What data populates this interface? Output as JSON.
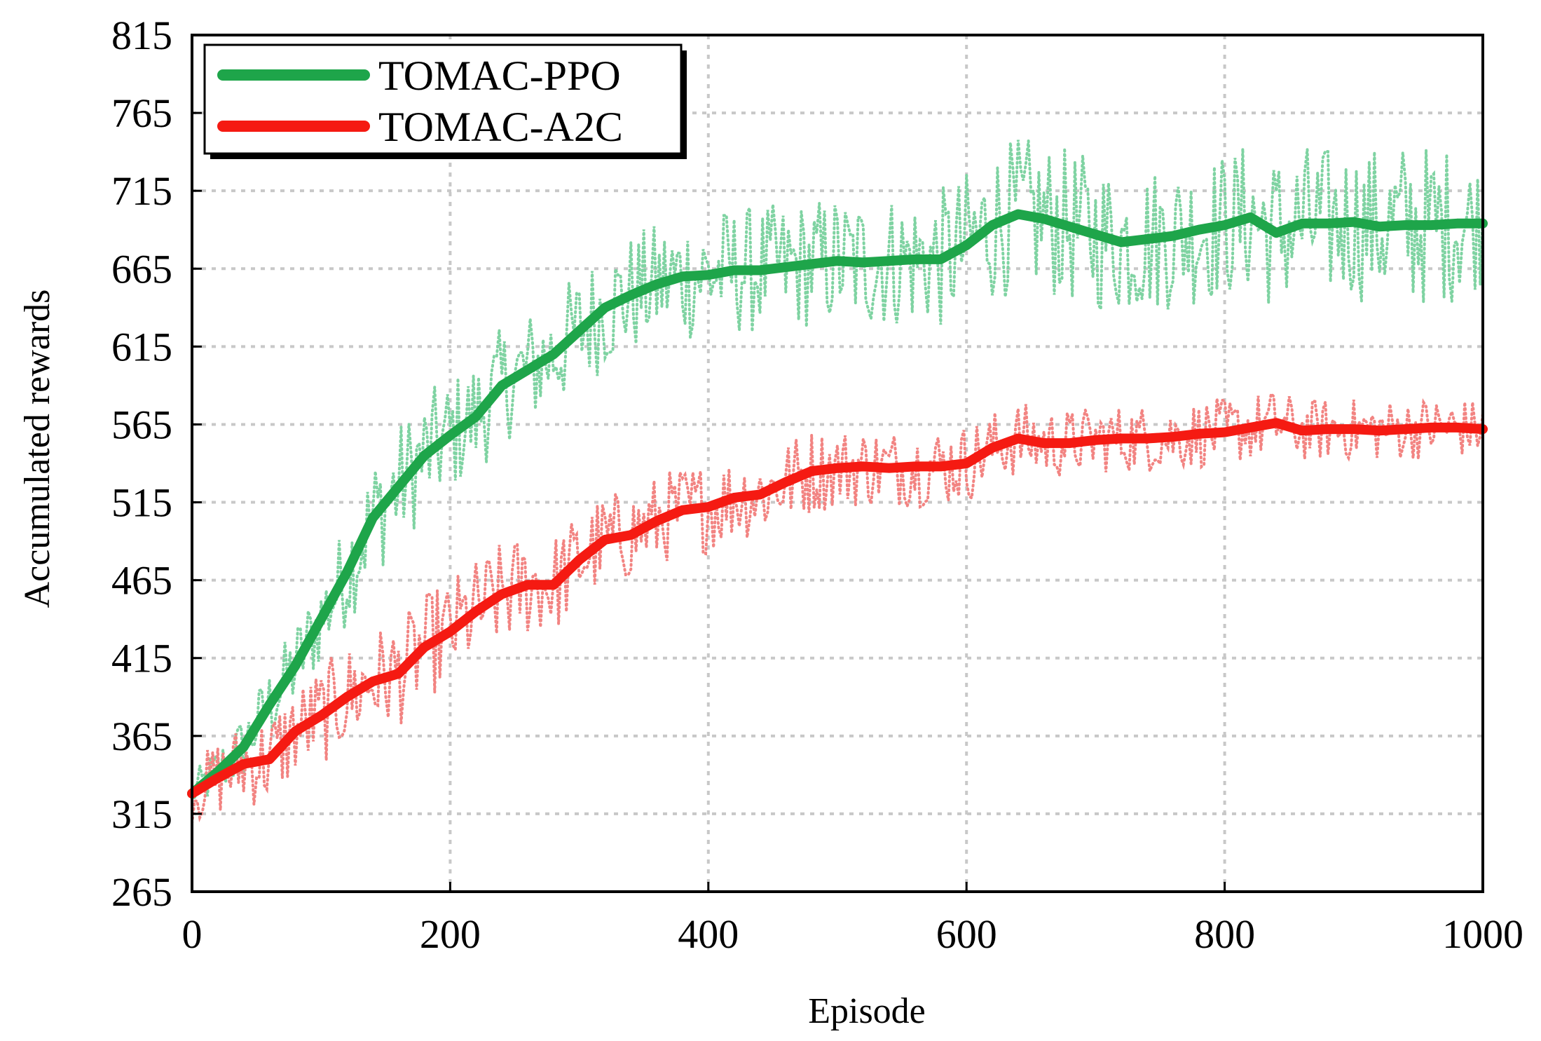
{
  "chart_data": {
    "type": "line",
    "title": "",
    "xlabel": "Episode",
    "ylabel": "Accumulated rewards",
    "xlim": [
      0,
      1000
    ],
    "ylim": [
      265,
      815
    ],
    "x_ticks": [
      0,
      200,
      400,
      600,
      800,
      1000
    ],
    "x_tick_labels": [
      "0",
      "200",
      "400",
      "600",
      "800",
      "1000"
    ],
    "y_ticks": [
      265,
      315,
      365,
      415,
      465,
      515,
      565,
      615,
      665,
      715,
      765,
      815
    ],
    "y_tick_labels": [
      "265",
      "315",
      "365",
      "415",
      "465",
      "515",
      "565",
      "615",
      "665",
      "715",
      "765",
      "815"
    ],
    "grid": true,
    "legend_position": "top-left",
    "series": [
      {
        "name": "TOMAC-PPO",
        "color": "#1ea54a",
        "raw_color": "#7fd3a2",
        "x": [
          0,
          20,
          40,
          60,
          80,
          100,
          120,
          140,
          160,
          180,
          200,
          220,
          240,
          260,
          280,
          300,
          320,
          340,
          360,
          380,
          400,
          420,
          440,
          460,
          480,
          500,
          520,
          540,
          560,
          580,
          600,
          620,
          640,
          660,
          680,
          700,
          720,
          740,
          760,
          780,
          800,
          820,
          840,
          860,
          880,
          900,
          920,
          940,
          960,
          980,
          1000
        ],
        "values": [
          328,
          342,
          358,
          385,
          410,
          440,
          470,
          505,
          525,
          545,
          558,
          570,
          590,
          600,
          610,
          625,
          640,
          648,
          655,
          660,
          661,
          664,
          664,
          666,
          668,
          670,
          669,
          670,
          671,
          671,
          680,
          693,
          700,
          697,
          692,
          687,
          682,
          684,
          686,
          690,
          693,
          698,
          688,
          694,
          694,
          695,
          692,
          693,
          693,
          694,
          694
        ],
        "raw_spread": [
          12,
          18,
          22,
          25,
          28,
          30,
          35,
          40,
          40,
          40,
          38,
          38,
          38,
          38,
          38,
          40,
          40,
          40,
          40,
          42,
          42,
          42,
          42,
          42,
          42,
          44,
          44,
          44,
          44,
          46,
          48,
          50,
          50,
          50,
          50,
          50,
          48,
          48,
          48,
          48,
          48,
          50,
          52,
          52,
          50,
          50,
          52,
          55,
          52,
          50,
          40
        ]
      },
      {
        "name": "TOMAC-A2C",
        "color": "#f51a12",
        "raw_color": "#f28482",
        "x": [
          0,
          20,
          40,
          60,
          80,
          100,
          120,
          140,
          160,
          180,
          200,
          220,
          240,
          260,
          280,
          300,
          320,
          340,
          360,
          380,
          400,
          420,
          440,
          460,
          480,
          500,
          520,
          540,
          560,
          580,
          600,
          620,
          640,
          660,
          680,
          700,
          720,
          740,
          760,
          780,
          800,
          820,
          840,
          860,
          880,
          900,
          920,
          940,
          960,
          980,
          1000
        ],
        "values": [
          328,
          338,
          347,
          350,
          368,
          378,
          390,
          400,
          405,
          422,
          432,
          445,
          456,
          462,
          462,
          478,
          491,
          494,
          503,
          510,
          512,
          518,
          520,
          528,
          535,
          537,
          538,
          537,
          538,
          538,
          540,
          550,
          556,
          553,
          553,
          555,
          556,
          556,
          557,
          559,
          560,
          563,
          566,
          561,
          562,
          562,
          561,
          562,
          563,
          563,
          562
        ],
        "raw_spread": [
          20,
          25,
          28,
          30,
          30,
          32,
          34,
          34,
          34,
          34,
          34,
          34,
          34,
          34,
          32,
          32,
          30,
          30,
          30,
          30,
          30,
          28,
          28,
          28,
          28,
          26,
          26,
          26,
          26,
          26,
          26,
          24,
          24,
          24,
          22,
          22,
          22,
          22,
          22,
          22,
          22,
          22,
          22,
          20,
          20,
          20,
          20,
          20,
          20,
          20,
          18
        ]
      }
    ]
  }
}
